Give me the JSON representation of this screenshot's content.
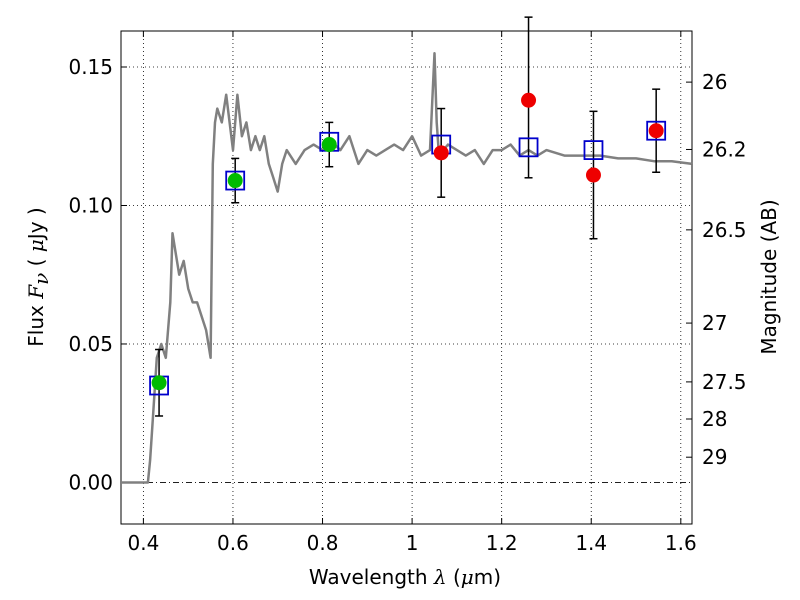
{
  "chart_data": {
    "type": "scatter",
    "xlabel_text": "Wavelength",
    "xlabel_symbol": "λ",
    "xlabel_unit_open": "(",
    "xlabel_unit_mu": "μ",
    "xlabel_unit_rest": "m)",
    "ylabel_text": "Flux",
    "ylabel_symbol": "F",
    "ylabel_sub": "ν",
    "ylabel_unit_open": "(",
    "ylabel_unit_mu": "μ",
    "ylabel_unit_rest": "Jy )",
    "y2label": "Magnitude (AB)",
    "xlim": [
      0.35,
      1.625
    ],
    "ylim": [
      -0.015,
      0.163
    ],
    "grid": true,
    "x_ticks": [
      {
        "v": 0.4,
        "label": "0.4"
      },
      {
        "v": 0.6,
        "label": "0.6"
      },
      {
        "v": 0.8,
        "label": "0.8"
      },
      {
        "v": 1.0,
        "label": "1"
      },
      {
        "v": 1.2,
        "label": "1.2"
      },
      {
        "v": 1.4,
        "label": "1.4"
      },
      {
        "v": 1.6,
        "label": "1.6"
      }
    ],
    "y_ticks": [
      {
        "v": 0.0,
        "label": "0.00"
      },
      {
        "v": 0.05,
        "label": "0.05"
      },
      {
        "v": 0.1,
        "label": "0.10"
      },
      {
        "v": 0.15,
        "label": "0.15"
      }
    ],
    "mag_ticks": [
      {
        "v": 26,
        "label": "26"
      },
      {
        "v": 26.2,
        "label": "26.2"
      },
      {
        "v": 26.5,
        "label": "26.5"
      },
      {
        "v": 27,
        "label": "27"
      },
      {
        "v": 27.5,
        "label": "27.5"
      },
      {
        "v": 28,
        "label": "28"
      },
      {
        "v": 29,
        "label": "29"
      }
    ],
    "series": [
      {
        "type": "line",
        "color": "#808080",
        "x": [
          0.35,
          0.4,
          0.41,
          0.415,
          0.42,
          0.43,
          0.44,
          0.45,
          0.46,
          0.465,
          0.47,
          0.48,
          0.49,
          0.5,
          0.51,
          0.52,
          0.53,
          0.54,
          0.55,
          0.555,
          0.56,
          0.565,
          0.575,
          0.585,
          0.6,
          0.61,
          0.62,
          0.63,
          0.64,
          0.65,
          0.66,
          0.67,
          0.68,
          0.69,
          0.7,
          0.71,
          0.72,
          0.74,
          0.76,
          0.78,
          0.8,
          0.82,
          0.84,
          0.86,
          0.88,
          0.9,
          0.92,
          0.94,
          0.96,
          0.98,
          1.0,
          1.02,
          1.04,
          1.05,
          1.055,
          1.06,
          1.08,
          1.1,
          1.12,
          1.14,
          1.16,
          1.18,
          1.2,
          1.22,
          1.24,
          1.26,
          1.28,
          1.3,
          1.34,
          1.38,
          1.42,
          1.46,
          1.5,
          1.54,
          1.58,
          1.625
        ],
        "y": [
          0.0,
          0.0,
          0.0,
          0.008,
          0.02,
          0.045,
          0.05,
          0.045,
          0.065,
          0.09,
          0.085,
          0.075,
          0.08,
          0.07,
          0.065,
          0.065,
          0.06,
          0.055,
          0.045,
          0.115,
          0.13,
          0.135,
          0.13,
          0.14,
          0.12,
          0.14,
          0.125,
          0.13,
          0.12,
          0.125,
          0.12,
          0.125,
          0.115,
          0.11,
          0.105,
          0.115,
          0.12,
          0.115,
          0.12,
          0.122,
          0.12,
          0.123,
          0.12,
          0.125,
          0.115,
          0.12,
          0.118,
          0.12,
          0.122,
          0.12,
          0.125,
          0.118,
          0.12,
          0.155,
          0.13,
          0.118,
          0.122,
          0.12,
          0.118,
          0.12,
          0.115,
          0.12,
          0.12,
          0.122,
          0.118,
          0.12,
          0.118,
          0.12,
          0.118,
          0.118,
          0.118,
          0.117,
          0.117,
          0.116,
          0.116,
          0.115
        ]
      },
      {
        "type": "model_points",
        "marker": "open-square",
        "color": "#0000cc",
        "x": [
          0.435,
          0.605,
          0.815,
          1.065,
          1.26,
          1.405,
          1.545
        ],
        "y": [
          0.035,
          0.109,
          0.123,
          0.122,
          0.121,
          0.12,
          0.127
        ]
      },
      {
        "type": "observed",
        "marker": "circle",
        "color": "#00bb00",
        "x": [
          0.435,
          0.605,
          0.815
        ],
        "y": [
          0.036,
          0.109,
          0.122
        ],
        "err": [
          0.012,
          0.008,
          0.008
        ]
      },
      {
        "type": "observed",
        "marker": "circle",
        "color": "#ee0000",
        "x": [
          1.065,
          1.26,
          1.405,
          1.545
        ],
        "y": [
          0.119,
          0.138,
          0.111,
          0.127
        ],
        "err_lo": [
          0.016,
          0.028,
          0.023,
          0.015
        ],
        "err_hi": [
          0.016,
          0.03,
          0.023,
          0.015
        ]
      }
    ]
  }
}
